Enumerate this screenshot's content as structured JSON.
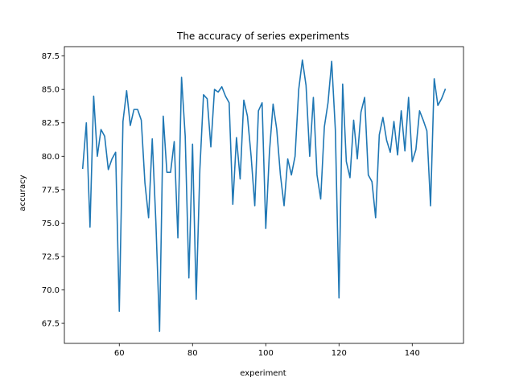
{
  "chart_data": {
    "type": "line",
    "title": "The accuracy of series experiments",
    "xlabel": "experiment",
    "ylabel": "accuracy",
    "xlim": [
      45,
      154
    ],
    "ylim": [
      66.0,
      88.2
    ],
    "x_ticks": [
      60,
      80,
      100,
      120,
      140
    ],
    "x_tick_labels": [
      "60",
      "80",
      "100",
      "120",
      "140"
    ],
    "y_ticks": [
      67.5,
      70.0,
      72.5,
      75.0,
      77.5,
      80.0,
      82.5,
      85.0,
      87.5
    ],
    "y_tick_labels": [
      "67.5",
      "70.0",
      "72.5",
      "75.0",
      "77.5",
      "80.0",
      "82.5",
      "85.0",
      "87.5"
    ],
    "grid": false,
    "legend": false,
    "series": [
      {
        "color": "#1f77b4",
        "x": [
          50,
          51,
          52,
          53,
          54,
          55,
          56,
          57,
          58,
          59,
          60,
          61,
          62,
          63,
          64,
          65,
          66,
          67,
          68,
          69,
          70,
          71,
          72,
          73,
          74,
          75,
          76,
          77,
          78,
          79,
          80,
          81,
          82,
          83,
          84,
          85,
          86,
          87,
          88,
          89,
          90,
          91,
          92,
          93,
          94,
          95,
          96,
          97,
          98,
          99,
          100,
          101,
          102,
          103,
          104,
          105,
          106,
          107,
          108,
          109,
          110,
          111,
          112,
          113,
          114,
          115,
          116,
          117,
          118,
          119,
          120,
          121,
          122,
          123,
          124,
          125,
          126,
          127,
          128,
          129,
          130,
          131,
          132,
          133,
          134,
          135,
          136,
          137,
          138,
          139,
          140,
          141,
          142,
          143,
          144,
          145,
          146,
          147,
          148,
          149
        ],
        "y": [
          79.1,
          82.5,
          74.7,
          84.5,
          80.0,
          82.0,
          81.5,
          79.0,
          79.8,
          80.3,
          68.4,
          82.6,
          84.9,
          82.3,
          83.5,
          83.5,
          82.7,
          78.0,
          75.4,
          81.3,
          75.0,
          66.9,
          83.0,
          78.8,
          78.8,
          81.1,
          73.9,
          85.9,
          81.5,
          70.9,
          80.9,
          69.3,
          79.0,
          84.6,
          84.3,
          80.7,
          85.0,
          84.8,
          85.2,
          84.5,
          84.0,
          76.4,
          81.4,
          78.3,
          84.2,
          83.0,
          80.0,
          76.3,
          83.4,
          84.0,
          74.6,
          80.3,
          83.9,
          82.0,
          78.6,
          76.3,
          79.8,
          78.6,
          80.0,
          85.0,
          87.2,
          85.3,
          80.0,
          84.4,
          78.6,
          76.8,
          82.2,
          84.0,
          87.1,
          82.0,
          69.4,
          85.4,
          79.6,
          78.4,
          82.7,
          79.8,
          83.3,
          84.4,
          78.6,
          78.1,
          75.4,
          81.6,
          82.9,
          81.2,
          80.3,
          82.6,
          80.1,
          83.4,
          80.4,
          84.4,
          79.6,
          80.5,
          83.4,
          82.7,
          81.9,
          76.3,
          85.8,
          83.8,
          84.3,
          85.0
        ]
      }
    ]
  }
}
